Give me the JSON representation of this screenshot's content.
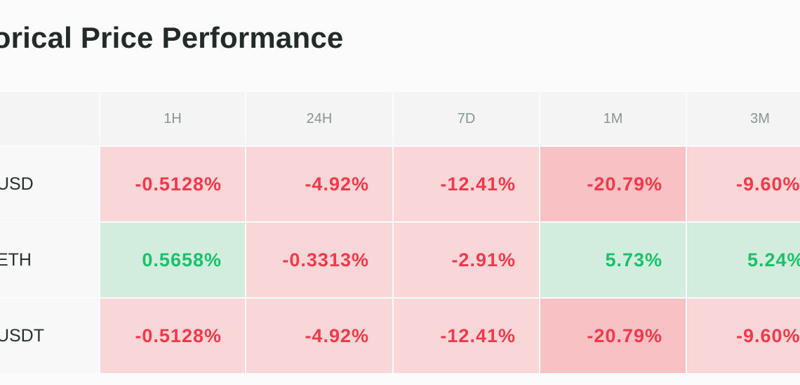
{
  "title": "storical Price Performance",
  "columns": [
    "1H",
    "24H",
    "7D",
    "1M",
    "3M"
  ],
  "rows": [
    {
      "label": "/USD",
      "values": [
        "-0.5128%",
        "-4.92%",
        "-12.41%",
        "-20.79%",
        "-9.60%"
      ],
      "tones": [
        "neg",
        "neg",
        "neg",
        "neg-strong",
        "neg"
      ]
    },
    {
      "label": "/ETH",
      "values": [
        "0.5658%",
        "-0.3313%",
        "-2.91%",
        "5.73%",
        "5.24%"
      ],
      "tones": [
        "pos",
        "neg",
        "neg",
        "pos",
        "pos"
      ]
    },
    {
      "label": "/USDT",
      "values": [
        "-0.5128%",
        "-4.92%",
        "-12.41%",
        "-20.79%",
        "-9.60%"
      ],
      "tones": [
        "neg",
        "neg",
        "neg",
        "neg-strong",
        "neg"
      ]
    }
  ],
  "colors": {
    "negative_text": "#f5384a",
    "positive_text": "#18c26a",
    "negative_bg": "#f9d6d7",
    "negative_strong_bg": "#f8c1c4",
    "positive_bg": "#d2ecdd"
  }
}
